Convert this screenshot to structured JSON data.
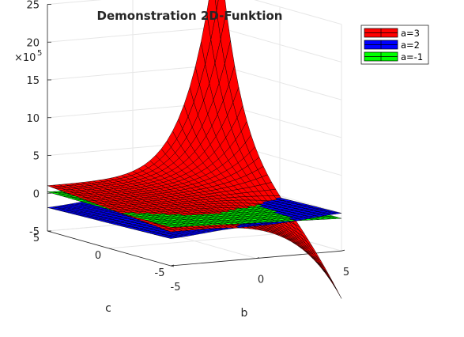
{
  "chart_data": {
    "type": "surface3d",
    "title": "Demonstration 2D-Funktion",
    "xlabel": "b",
    "ylabel": "c",
    "zlabel": "",
    "z_exponent_label": "×10",
    "z_exponent_power": "5",
    "xlim": [
      -5,
      5
    ],
    "ylim": [
      -5,
      5
    ],
    "zlim": [
      -5,
      25
    ],
    "x_ticks": [
      "-5",
      "0",
      "5"
    ],
    "y_ticks": [
      "-5",
      "0",
      "5"
    ],
    "z_ticks": [
      "-5",
      "0",
      "5",
      "10",
      "15",
      "20",
      "25"
    ],
    "grid": true,
    "legend_position": "top-right",
    "series": [
      {
        "name": "a=3",
        "color": "#ff0000"
      },
      {
        "name": "a=2",
        "color": "#0000ff"
      },
      {
        "name": "a=-1",
        "color": "#00ff00"
      }
    ],
    "function_note": "surfaces of the same 2D function of b and c for three values of a"
  }
}
